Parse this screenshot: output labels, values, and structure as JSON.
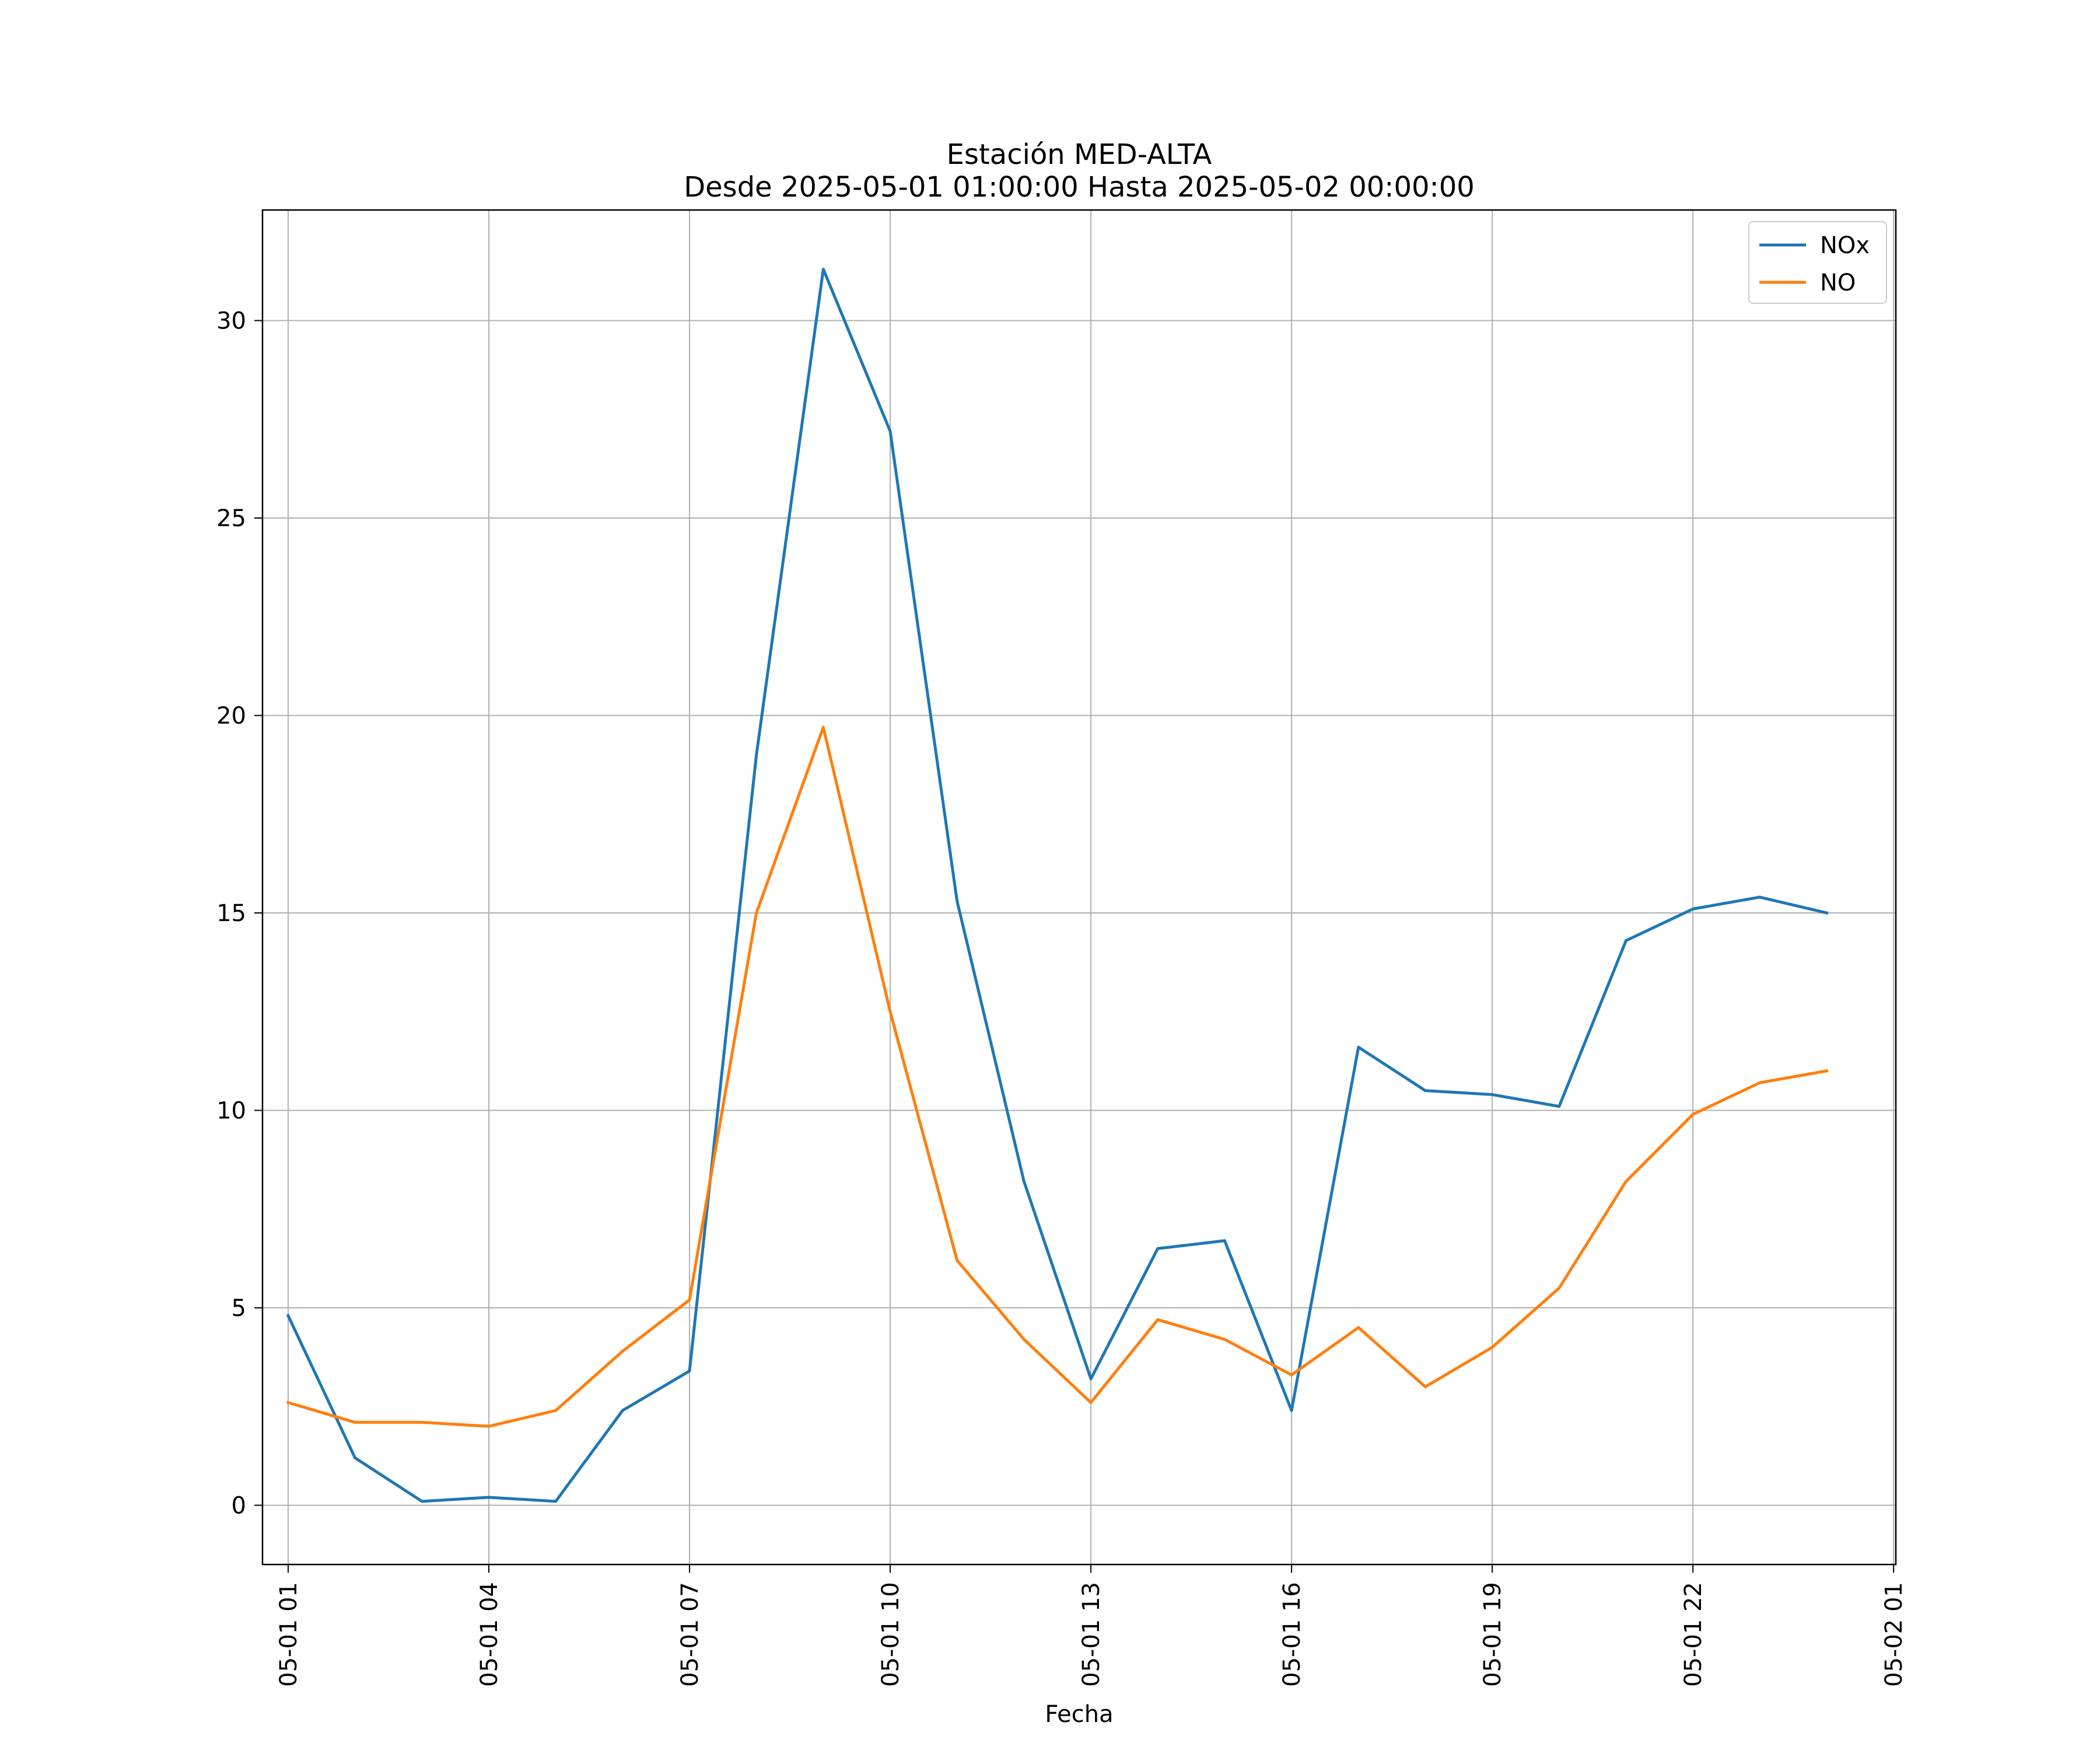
{
  "chart_data": {
    "type": "line",
    "title": "Estación MED-ALTA",
    "subtitle": "Desde 2025-05-01 01:00:00 Hasta 2025-05-02 00:00:00",
    "xlabel": "Fecha",
    "ylabel": "",
    "x": [
      "2025-05-01 01:00",
      "2025-05-01 02:00",
      "2025-05-01 03:00",
      "2025-05-01 04:00",
      "2025-05-01 05:00",
      "2025-05-01 06:00",
      "2025-05-01 07:00",
      "2025-05-01 08:00",
      "2025-05-01 09:00",
      "2025-05-01 10:00",
      "2025-05-01 11:00",
      "2025-05-01 12:00",
      "2025-05-01 13:00",
      "2025-05-01 14:00",
      "2025-05-01 15:00",
      "2025-05-01 16:00",
      "2025-05-01 17:00",
      "2025-05-01 18:00",
      "2025-05-01 19:00",
      "2025-05-01 20:00",
      "2025-05-01 21:00",
      "2025-05-01 22:00",
      "2025-05-01 23:00",
      "2025-05-02 00:00"
    ],
    "xlim": [
      "2025-05-01 00:37",
      "2025-05-02 01:02"
    ],
    "xticks": [
      {
        "value": "2025-05-01 01:00",
        "label": "05-01 01"
      },
      {
        "value": "2025-05-01 04:00",
        "label": "05-01 04"
      },
      {
        "value": "2025-05-01 07:00",
        "label": "05-01 07"
      },
      {
        "value": "2025-05-01 10:00",
        "label": "05-01 10"
      },
      {
        "value": "2025-05-01 13:00",
        "label": "05-01 13"
      },
      {
        "value": "2025-05-01 16:00",
        "label": "05-01 16"
      },
      {
        "value": "2025-05-01 19:00",
        "label": "05-01 19"
      },
      {
        "value": "2025-05-01 22:00",
        "label": "05-01 22"
      },
      {
        "value": "2025-05-02 01:00",
        "label": "05-02 01"
      }
    ],
    "ylim": [
      -1.5,
      32.8
    ],
    "yticks": [
      0,
      5,
      10,
      15,
      20,
      25,
      30
    ],
    "grid": true,
    "legend_position": "top-right",
    "series": [
      {
        "name": "NOx",
        "color": "#1f77b4",
        "values": [
          4.8,
          1.2,
          0.1,
          0.2,
          0.1,
          2.4,
          3.4,
          19.0,
          31.3,
          27.2,
          15.3,
          8.2,
          3.2,
          6.5,
          6.7,
          2.4,
          11.6,
          10.5,
          10.4,
          10.1,
          14.3,
          15.1,
          15.4,
          15.0
        ]
      },
      {
        "name": "NO",
        "color": "#ff7f0e",
        "values": [
          2.6,
          2.1,
          2.1,
          2.0,
          2.4,
          3.9,
          5.2,
          15.0,
          19.7,
          12.5,
          6.2,
          4.2,
          2.6,
          4.7,
          4.2,
          3.3,
          4.5,
          3.0,
          4.0,
          5.5,
          8.2,
          9.9,
          10.7,
          11.0
        ]
      }
    ]
  }
}
